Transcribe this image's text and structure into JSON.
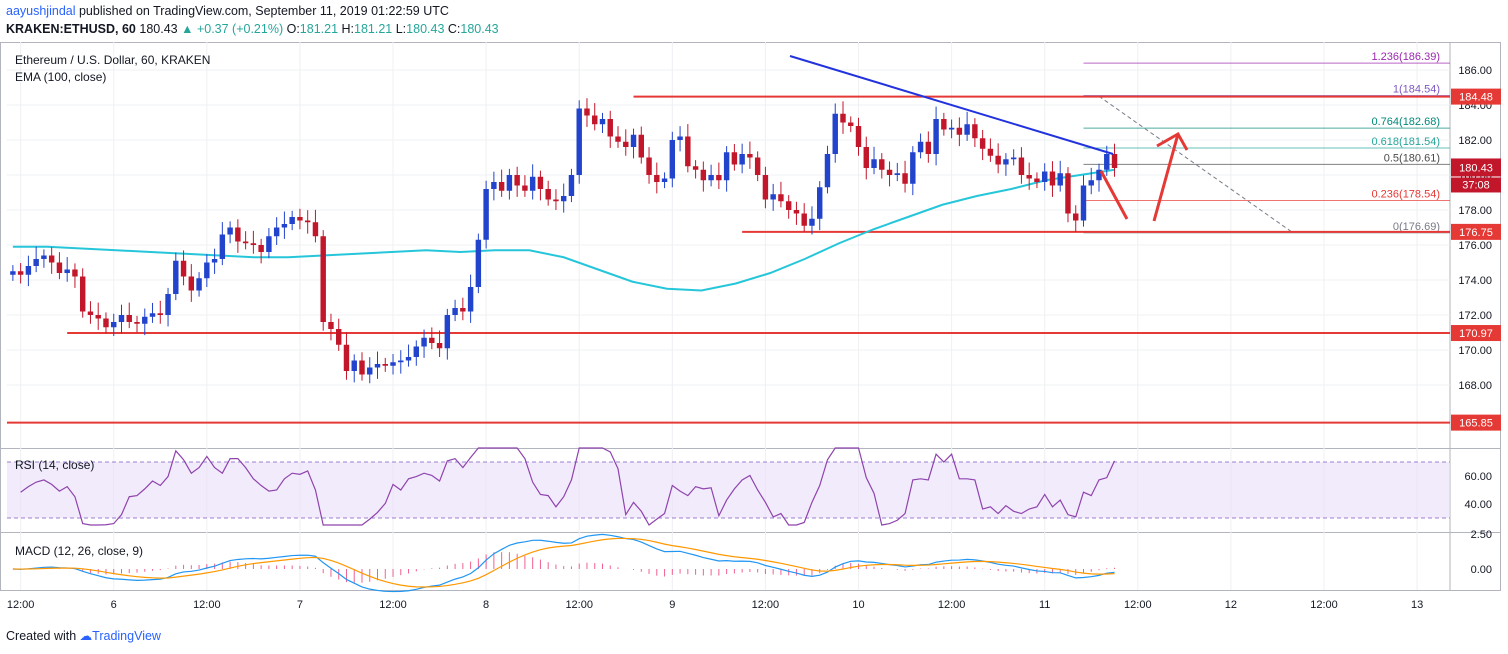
{
  "header": {
    "user": "aayushjindal",
    "published": "published on TradingView.com, September 11, 2019 01:22:59 UTC",
    "symbol": "KRAKEN:ETHUSD, 60",
    "last": "180.43",
    "change": "▲ +0.37 (+0.21%)",
    "o_label": "O:",
    "o": "181.21",
    "h_label": "H:",
    "h": "181.21",
    "l_label": "L:",
    "l": "180.43",
    "c_label": "C:",
    "c": "180.43"
  },
  "chart_data": {
    "type": "candlestick",
    "title": "Ethereum / U.S. Dollar, 60, KRAKEN",
    "indicator": "EMA (100, close)",
    "ylim": [
      164.4,
      187.6
    ],
    "y_ticks": [
      "186.00",
      "184.00",
      "182.00",
      "180.00",
      "178.00",
      "176.00",
      "174.00",
      "172.00",
      "170.00",
      "168.00"
    ],
    "x_ticks": [
      "12:00",
      "6",
      "12:00",
      "7",
      "12:00",
      "8",
      "12:00",
      "9",
      "12:00",
      "10",
      "12:00",
      "11",
      "12:00",
      "12",
      "12:00",
      "13"
    ],
    "horizontal_levels": [
      {
        "label": "184.48",
        "value": 184.48
      },
      {
        "label": "176.75",
        "value": 176.75
      },
      {
        "label": "170.97",
        "value": 170.97
      },
      {
        "label": "165.85",
        "value": 165.85
      }
    ],
    "price_label": "180.43",
    "countdown": "37:08",
    "fibonacci": [
      {
        "label": "1.236(186.39)",
        "value": 186.39,
        "color": "#9c27b0"
      },
      {
        "label": "1(184.54)",
        "value": 184.54,
        "color": "#7e57c2"
      },
      {
        "label": "0.764(182.68)",
        "value": 182.68,
        "color": "#00897b"
      },
      {
        "label": "0.618(181.54)",
        "value": 181.54,
        "color": "#26a69a"
      },
      {
        "label": "0.5(180.61)",
        "value": 180.61,
        "color": "#4a4a4a"
      },
      {
        "label": "0.236(178.54)",
        "value": 178.54,
        "color": "#e53935"
      },
      {
        "label": "0(176.69)",
        "value": 176.69,
        "color": "#787b86"
      }
    ],
    "trendline": {
      "from": [
        60,
        186.8
      ],
      "to": [
        123,
        181.2
      ]
    },
    "candles_hourly_close": [
      174.5,
      174.3,
      174.8,
      175.2,
      175.4,
      175.0,
      174.4,
      174.6,
      174.2,
      172.2,
      172.0,
      171.8,
      171.3,
      171.6,
      172.0,
      171.6,
      171.5,
      171.9,
      172.1,
      172.0,
      173.2,
      175.1,
      174.2,
      173.4,
      174.1,
      175.0,
      175.2,
      176.6,
      177.0,
      176.2,
      176.1,
      176.0,
      175.6,
      176.5,
      177.0,
      177.2,
      177.6,
      177.4,
      177.3,
      176.5,
      171.6,
      171.2,
      170.3,
      168.8,
      169.4,
      168.6,
      169.0,
      169.2,
      169.1,
      169.3,
      169.4,
      169.6,
      170.2,
      170.7,
      170.4,
      170.1,
      172.0,
      172.4,
      172.2,
      173.6,
      176.3,
      179.2,
      179.6,
      179.1,
      180.0,
      179.4,
      179.1,
      179.9,
      179.2,
      178.6,
      178.5,
      178.8,
      180.0,
      183.8,
      183.4,
      182.9,
      183.2,
      182.2,
      181.9,
      181.6,
      182.3,
      181.0,
      180.0,
      179.6,
      179.8,
      182.0,
      182.2,
      180.5,
      180.3,
      179.7,
      180.0,
      179.7,
      181.3,
      180.6,
      181.2,
      181.0,
      180.0,
      178.6,
      178.9,
      178.5,
      178.0,
      177.8,
      177.1,
      177.5,
      179.3,
      181.2,
      183.5,
      183.0,
      182.8,
      181.6,
      180.4,
      180.9,
      180.3,
      180.0,
      180.1,
      179.5,
      181.3,
      181.9,
      181.2,
      183.2,
      182.6,
      182.7,
      182.3,
      182.9,
      182.1,
      181.5,
      181.1,
      180.6,
      180.9,
      181.0,
      180.0,
      179.8,
      179.6,
      180.2,
      179.4,
      180.1,
      177.8,
      177.4,
      179.4,
      179.7,
      180.3,
      181.2,
      180.4
    ],
    "ema_100": [
      175.9,
      175.9,
      175.8,
      175.7,
      175.6,
      175.5,
      175.4,
      175.3,
      175.3,
      175.4,
      175.5,
      175.6,
      175.7,
      175.6,
      175.7,
      175.7,
      175.3,
      174.6,
      173.9,
      173.5,
      173.4,
      173.8,
      174.4,
      175.2,
      176.1,
      176.9,
      177.6,
      178.3,
      178.8,
      179.2,
      179.7,
      180.0,
      180.3
    ],
    "rsi": {
      "label": "RSI (14, close)",
      "ticks": [
        "60.00",
        "40.00"
      ],
      "upper": 70,
      "lower": 30
    },
    "macd": {
      "label": "MACD (12, 26, close, 9)",
      "ticks": [
        "2.50",
        "0.00"
      ]
    }
  },
  "footer": {
    "created_with": "Created with",
    "brand": "TradingView"
  }
}
